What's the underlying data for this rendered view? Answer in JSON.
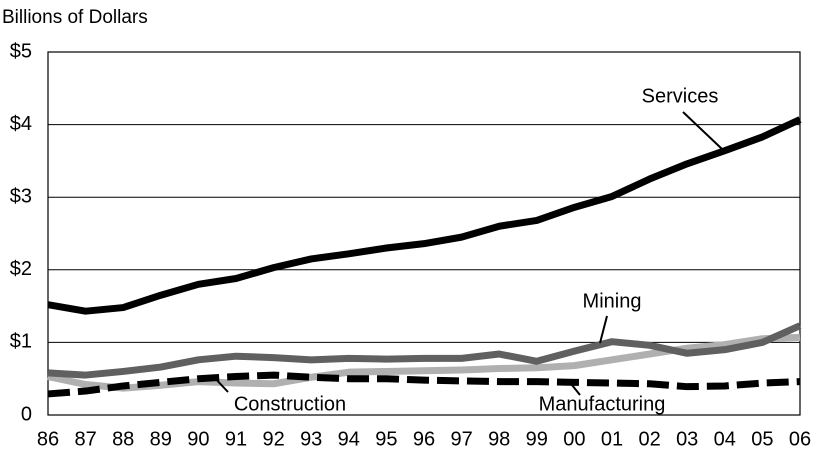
{
  "chart_data": {
    "type": "line",
    "y_axis_label": "Billions of Dollars",
    "categories": [
      "86",
      "87",
      "88",
      "89",
      "90",
      "91",
      "92",
      "93",
      "94",
      "95",
      "96",
      "97",
      "98",
      "99",
      "00",
      "01",
      "02",
      "03",
      "04",
      "05",
      "06"
    ],
    "series": [
      {
        "name": "Services",
        "color": "#000000",
        "dashed": false,
        "values": [
          1.52,
          1.43,
          1.48,
          1.65,
          1.8,
          1.88,
          2.03,
          2.15,
          2.22,
          2.3,
          2.36,
          2.45,
          2.6,
          2.68,
          2.86,
          3.01,
          3.25,
          3.46,
          3.64,
          3.83,
          4.07
        ]
      },
      {
        "name": "Construction",
        "color": "#b0b0b0",
        "dashed": false,
        "values": [
          0.53,
          0.42,
          0.37,
          0.41,
          0.46,
          0.44,
          0.43,
          0.52,
          0.59,
          0.6,
          0.61,
          0.62,
          0.64,
          0.65,
          0.68,
          0.76,
          0.84,
          0.92,
          0.97,
          1.05,
          1.07
        ]
      },
      {
        "name": "Mining",
        "color": "#606060",
        "dashed": false,
        "values": [
          0.58,
          0.55,
          0.6,
          0.66,
          0.76,
          0.81,
          0.79,
          0.76,
          0.78,
          0.77,
          0.78,
          0.78,
          0.84,
          0.74,
          0.88,
          1.01,
          0.96,
          0.85,
          0.9,
          1.0,
          1.23
        ]
      },
      {
        "name": "Manufacturing",
        "color": "#000000",
        "dashed": true,
        "values": [
          0.29,
          0.33,
          0.4,
          0.45,
          0.5,
          0.53,
          0.55,
          0.52,
          0.5,
          0.5,
          0.48,
          0.47,
          0.46,
          0.46,
          0.45,
          0.44,
          0.43,
          0.39,
          0.4,
          0.44,
          0.46
        ]
      }
    ],
    "ylim": [
      0,
      5
    ],
    "yticks": [
      0,
      {
        "value": 1,
        "label": "$1"
      },
      {
        "value": 2,
        "label": "$2"
      },
      {
        "value": 3,
        "label": "$3"
      },
      {
        "value": 4,
        "label": "$4"
      },
      {
        "value": 5,
        "label": "$5"
      }
    ],
    "grid": true
  }
}
